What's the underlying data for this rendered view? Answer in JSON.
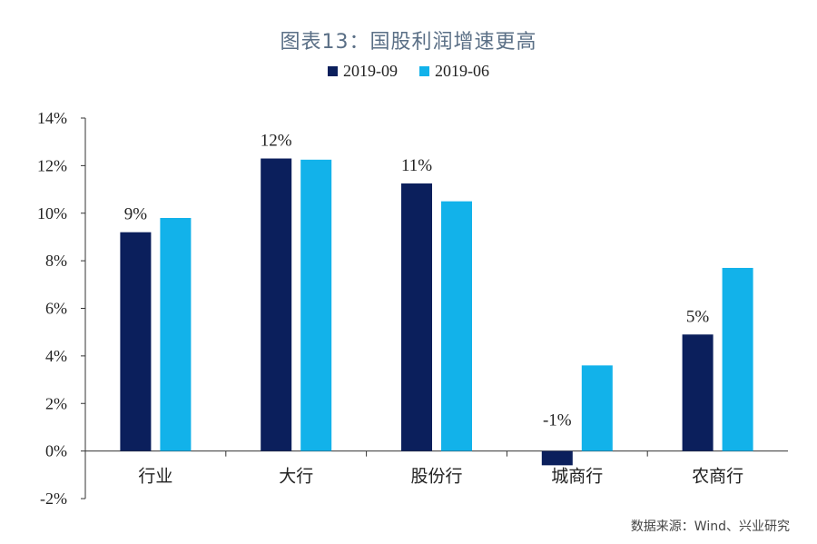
{
  "title": "图表13：国股利润增速更高",
  "source": "数据来源：Wind、兴业研究",
  "colors": {
    "series1": "#0b1f5c",
    "series2": "#12b2ea",
    "axis": "#333333",
    "title": "#5a6f86"
  },
  "chart_data": {
    "type": "bar",
    "categories": [
      "行业",
      "大行",
      "股份行",
      "城商行",
      "农商行"
    ],
    "series": [
      {
        "name": "2019-09",
        "values": [
          9.2,
          12.3,
          11.25,
          -0.6,
          4.9
        ]
      },
      {
        "name": "2019-06",
        "values": [
          9.8,
          12.25,
          10.5,
          3.6,
          7.7
        ]
      }
    ],
    "data_labels": [
      "9%",
      "12%",
      "11%",
      "-1%",
      "5%"
    ],
    "ylim": [
      -2,
      14
    ],
    "yticks": [
      -2,
      0,
      2,
      4,
      6,
      8,
      10,
      12,
      14
    ],
    "ytick_labels": [
      "-2%",
      "0%",
      "2%",
      "4%",
      "6%",
      "8%",
      "10%",
      "12%",
      "14%"
    ],
    "legend_position": "top-center",
    "grid": false
  }
}
